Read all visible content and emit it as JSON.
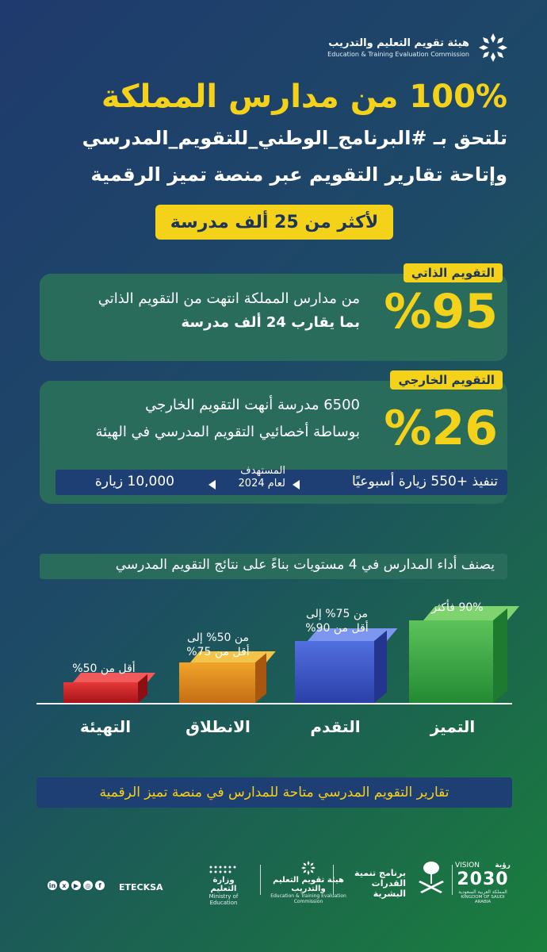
{
  "header": {
    "org_ar": "هيئة تقويم التعليم والتدريب",
    "org_en": "Education & Training Evaluation Commission",
    "logo_icon": "flower-logo-icon"
  },
  "headline": "100% من مدارس المملكة",
  "subline1": "تلتحق بـ #البرنامج_الوطني_للتقويم_المدرسي",
  "subline2": "وإتاحة تقارير التقويم عبر منصة تميز الرقمية",
  "highlight": "لأكثر من 25 ألف مدرسة",
  "self_eval": {
    "tag": "التقويم الذاتي",
    "percent": "%95",
    "line1": "من مدارس المملكة انتهت من التقويم الذاتي",
    "line2": "بما يقارب 24 ألف مدرسة"
  },
  "external_eval": {
    "tag": "التقويم الخارجي",
    "percent": "%26",
    "line1": "6500 مدرسة أنهت التقويم الخارجي",
    "line2": "بوساطة أخصائيي التقويم المدرسي في الهيئة",
    "stat_visits": "تنفيذ +550 زيارة أسبوعيًا",
    "stat_target_line1": "المستهدف",
    "stat_target_line2": "لعام 2024",
    "stat_target_value": "10,000 زيارة"
  },
  "classification": "يصنف أداء المدارس في 4 مستويات بناءً على نتائج التقويم المدرسي",
  "levels": [
    {
      "label": "التميز",
      "range1": "90% فأكثر",
      "range2": "",
      "color": "#3fae4a"
    },
    {
      "label": "التقدم",
      "range1": "من 75% إلى",
      "range2": "أقل من 90%",
      "color": "#3d5bd0"
    },
    {
      "label": "الانطلاق",
      "range1": "من 50% إلى",
      "range2": "أقل من 75%",
      "color": "#e38a1c"
    },
    {
      "label": "التهيئة",
      "range1": "أقل من 50%",
      "range2": "",
      "color": "#d8262c"
    }
  ],
  "bottom_note": "تقارير التقويم المدرسي متاحة للمدارس في منصة تميز الرقمية",
  "footer": {
    "handle": "ETECKSA",
    "social_icons": [
      "linkedin-icon",
      "x-icon",
      "youtube-icon",
      "instagram-icon",
      "facebook-icon"
    ],
    "moe_ar": "وزارة التعليم",
    "moe_en": "Ministry of Education",
    "etec_ar": "هيئة تقويم التعليم والتدريب",
    "etec_en": "Education & Training Evaluation Commission",
    "hcdp_ar1": "برنامج تنمية",
    "hcdp_ar2": "القدرات البشرية",
    "vision_en": "VISION",
    "vision_ar": "رؤية",
    "vision_year": "2030",
    "vision_country_ar": "المملكة العربية السعودية",
    "vision_country_en": "KINGDOM OF SAUDI ARABIA"
  }
}
